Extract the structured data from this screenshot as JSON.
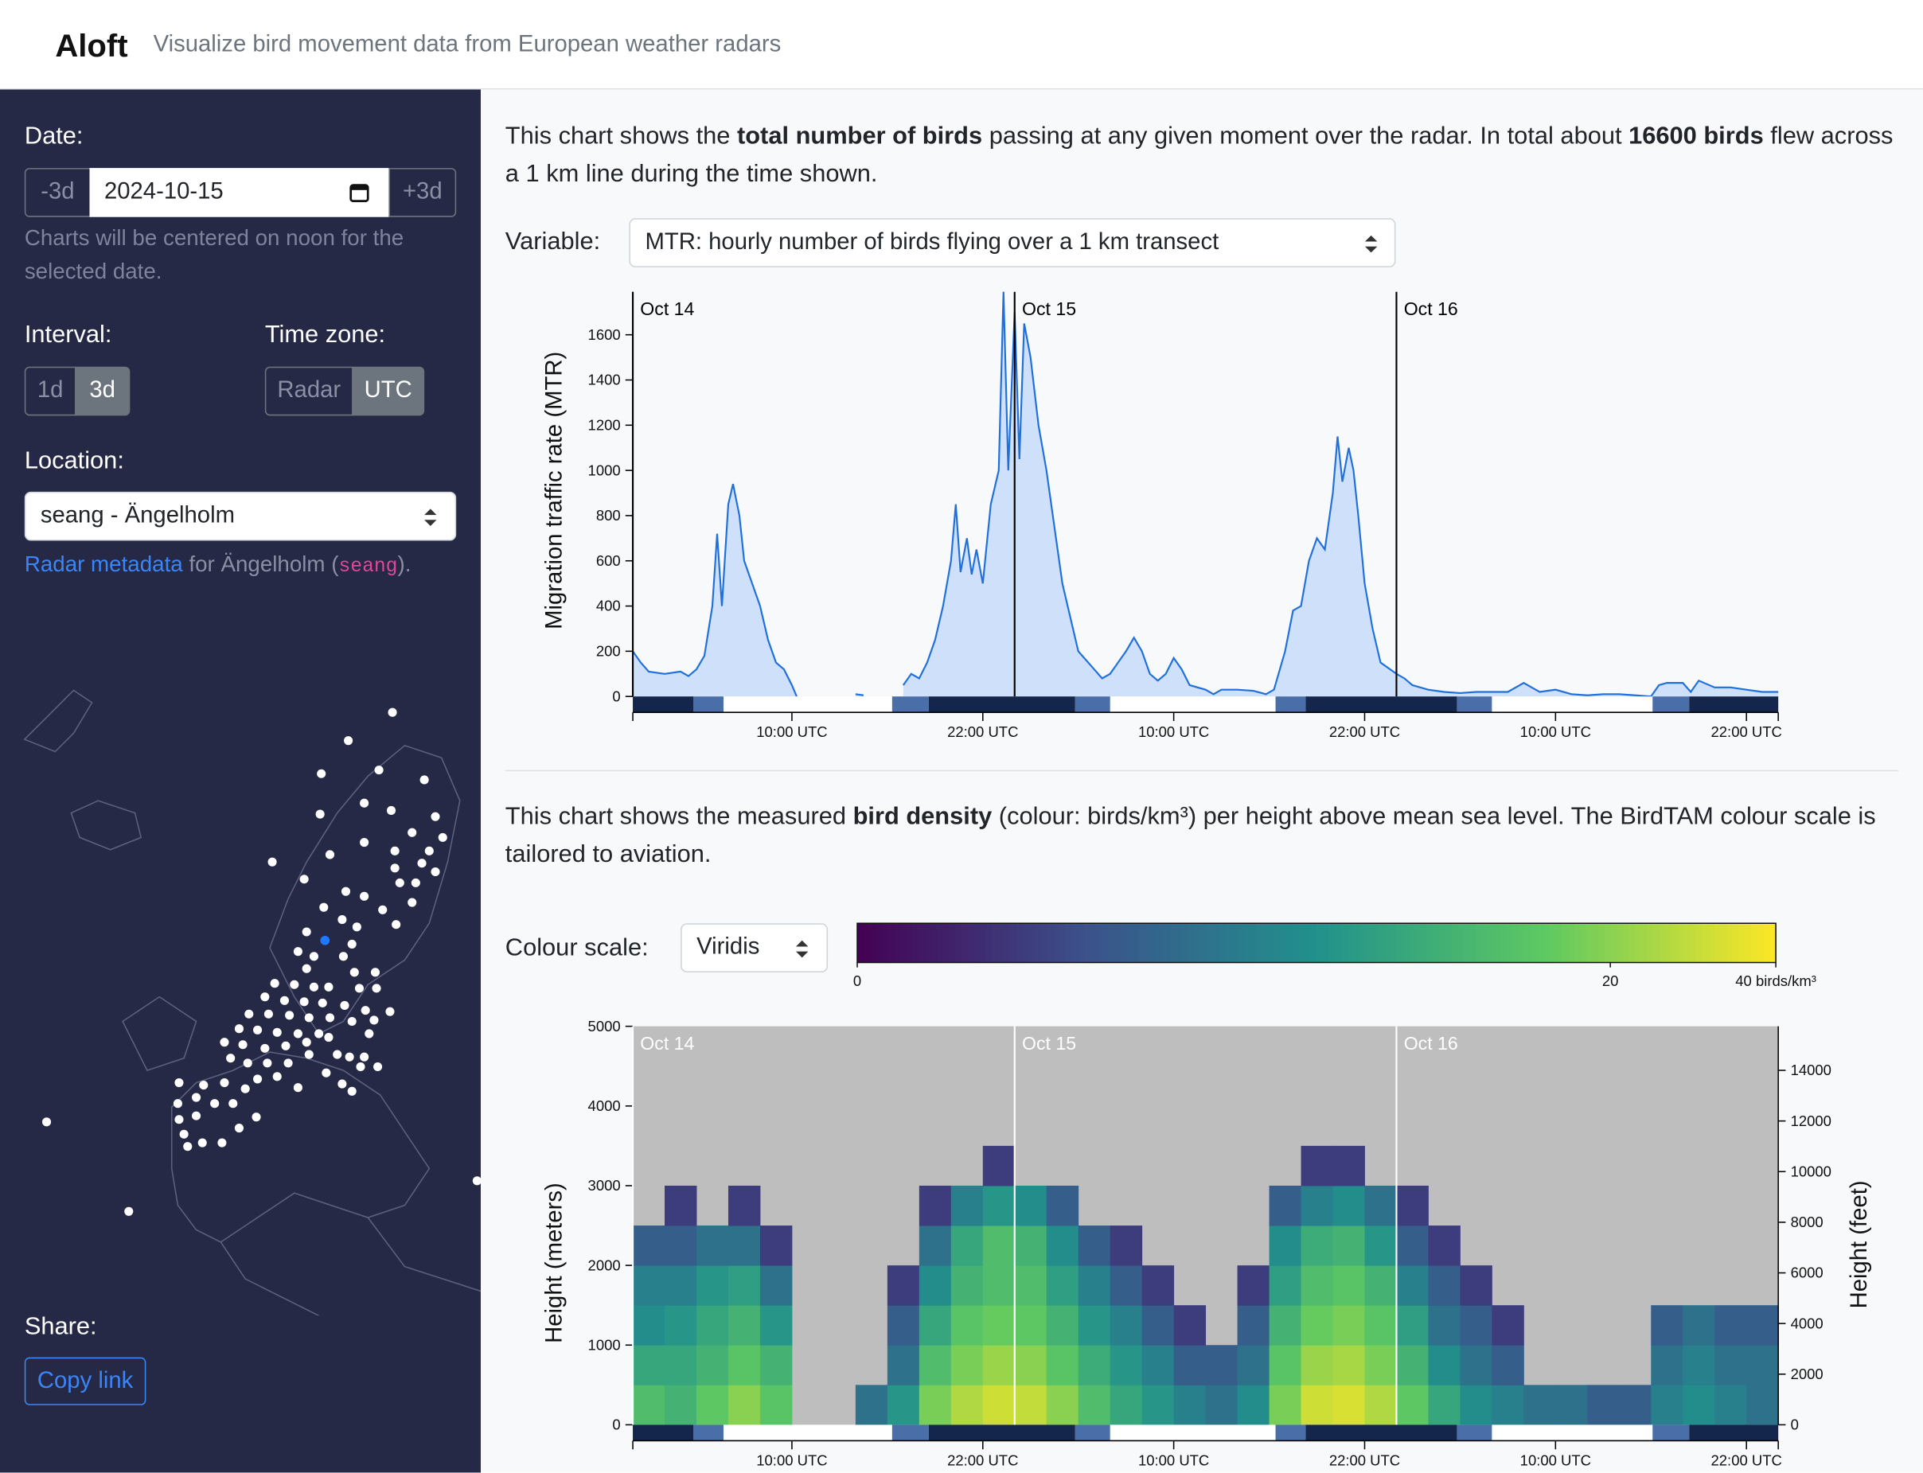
{
  "header": {
    "title": "Aloft",
    "subtitle": "Visualize bird movement data from European weather radars"
  },
  "sidebar": {
    "date_label": "Date:",
    "prev": "-3d",
    "date": "2024-10-15",
    "next": "+3d",
    "date_note": "Charts will be centered on noon for the selected date.",
    "interval_label": "Interval:",
    "interval_options": [
      "1d",
      "3d"
    ],
    "timezone_label": "Time zone:",
    "timezone_options": [
      "Radar",
      "UTC"
    ],
    "location_label": "Location:",
    "location": "seang - Ängelholm",
    "metadata": {
      "link": "Radar metadata",
      "before": " for Ängelholm (",
      "code": "seang",
      "after": ")."
    },
    "share_label": "Share:",
    "copy": "Copy link"
  },
  "main": {
    "intro1": [
      "This chart shows the ",
      "total number of birds",
      " passing at any given moment over the radar. In total about ",
      "16600 birds",
      " flew across a 1 km line during the time shown."
    ],
    "variable_label": "Variable:",
    "variable": "MTR: hourly number of birds flying over a 1 km transect",
    "intro2": [
      "This chart shows the measured ",
      "bird density",
      " (colour: birds/km³) per height above mean sea level. The BirdTAM colour scale is tailored to aviation."
    ],
    "colour_label": "Colour scale:",
    "colour": "Viridis"
  },
  "chart_data": [
    {
      "type": "area",
      "y_label": "Migration traffic rate (MTR)",
      "color": "#1f6fdc",
      "fill": "#cfe0fb",
      "x": [
        0,
        0.5,
        1,
        2,
        3,
        3.5,
        4,
        4.5,
        5,
        5.3,
        5.6,
        6,
        6.3,
        6.7,
        7,
        7.5,
        8,
        8.5,
        9,
        9.5,
        10,
        10.3,
        12,
        14,
        14.5,
        16,
        17,
        17.5,
        18,
        18.5,
        19,
        19.5,
        20,
        20.3,
        20.6,
        21,
        21.3,
        21.6,
        22,
        22.5,
        23,
        23.3,
        23.6,
        24,
        24.3,
        24.6,
        25,
        25.5,
        26,
        26.5,
        27,
        27.5,
        28,
        29,
        29.5,
        30,
        30.5,
        31,
        31.5,
        32,
        32.5,
        33,
        33.5,
        34,
        34.5,
        35,
        36,
        36.5,
        37,
        38,
        39,
        39.8,
        40.3,
        41,
        41.5,
        42,
        42.5,
        43,
        43.5,
        44,
        44.3,
        44.6,
        45,
        45.3,
        45.6,
        46,
        46.5,
        47,
        48,
        48.5,
        49,
        50,
        51,
        52,
        53,
        54,
        55,
        56,
        56.5,
        57,
        58,
        59,
        60,
        61,
        62,
        63,
        64,
        64.5,
        65,
        66,
        66.5,
        67,
        68,
        69,
        70,
        71,
        72
      ],
      "values": [
        200,
        150,
        110,
        100,
        110,
        90,
        120,
        180,
        400,
        720,
        400,
        850,
        940,
        800,
        600,
        500,
        400,
        250,
        150,
        120,
        50,
        0,
        null,
        10,
        5,
        null,
        50,
        100,
        80,
        150,
        250,
        400,
        600,
        850,
        550,
        700,
        540,
        650,
        500,
        850,
        1000,
        1790,
        1000,
        1700,
        1050,
        1650,
        1500,
        1200,
        1000,
        750,
        500,
        350,
        200,
        120,
        80,
        100,
        150,
        200,
        260,
        200,
        100,
        70,
        100,
        170,
        120,
        50,
        30,
        10,
        30,
        30,
        25,
        10,
        30,
        200,
        380,
        400,
        600,
        700,
        650,
        900,
        1150,
        950,
        1100,
        1000,
        800,
        500,
        300,
        150,
        100,
        80,
        50,
        30,
        20,
        15,
        20,
        20,
        20,
        60,
        40,
        20,
        30,
        10,
        5,
        10,
        10,
        5,
        0,
        50,
        60,
        60,
        20,
        70,
        40,
        40,
        30,
        20,
        20
      ],
      "xlim": [
        0,
        72
      ],
      "xticks": [
        {
          "value": 10,
          "label": "10:00 UTC"
        },
        {
          "value": 22,
          "label": "22:00 UTC"
        },
        {
          "value": 34,
          "label": "10:00 UTC"
        },
        {
          "value": 46,
          "label": "22:00 UTC"
        },
        {
          "value": 58,
          "label": "10:00 UTC"
        },
        {
          "value": 70,
          "label": "22:00 UTC"
        }
      ],
      "ylim": [
        0,
        1790
      ],
      "yticks": [
        0,
        200,
        400,
        600,
        800,
        1000,
        1200,
        1400,
        1600
      ],
      "day_lines": [
        {
          "value": 0,
          "label": "Oct 14"
        },
        {
          "value": 24,
          "label": "Oct 15"
        },
        {
          "value": 48,
          "label": "Oct 16"
        }
      ],
      "night": [
        [
          0,
          3.8
        ],
        [
          18.6,
          27.8
        ],
        [
          42.3,
          51.8
        ],
        [
          66.4,
          72
        ]
      ],
      "twilight": [
        [
          3.8,
          5.7
        ],
        [
          16.3,
          18.6
        ],
        [
          27.8,
          30
        ],
        [
          40.4,
          42.3
        ],
        [
          51.8,
          54
        ],
        [
          64.1,
          66.4
        ]
      ]
    },
    {
      "type": "heatmap",
      "y_label": "Height (meters)",
      "y2_label": "Height (feet)",
      "colormap": "viridis",
      "color_scale": "log1p",
      "missing_color": "#bebebe",
      "x_bins": [
        0,
        2,
        4,
        6,
        8,
        10,
        12,
        14,
        16,
        18,
        20,
        22,
        24,
        26,
        28,
        30,
        32,
        34,
        36,
        38,
        40,
        42,
        44,
        46,
        48,
        50,
        52,
        54,
        56,
        58,
        60,
        62,
        64,
        66,
        68,
        70,
        72
      ],
      "y_bins": [
        0,
        500,
        1000,
        1500,
        2000,
        2500,
        3000,
        3500,
        4000,
        4500,
        5000
      ],
      "z": [
        [
          12,
          10,
          15,
          20,
          14,
          null,
          null,
          3,
          6,
          18,
          25,
          30,
          28,
          20,
          12,
          8,
          6,
          4,
          3,
          5,
          18,
          30,
          32,
          25,
          15,
          8,
          5,
          4,
          3,
          3,
          2,
          2,
          4,
          5,
          4,
          3
        ],
        [
          8,
          8,
          10,
          14,
          10,
          null,
          null,
          null,
          3,
          12,
          18,
          22,
          20,
          14,
          9,
          6,
          4,
          2,
          2,
          3,
          14,
          22,
          24,
          18,
          10,
          5,
          3,
          2,
          null,
          null,
          null,
          null,
          3,
          4,
          3,
          3
        ],
        [
          5,
          6,
          8,
          10,
          6,
          null,
          null,
          null,
          2,
          8,
          14,
          16,
          15,
          10,
          6,
          4,
          2,
          1,
          null,
          2,
          10,
          16,
          18,
          14,
          7,
          3,
          2,
          1,
          null,
          null,
          null,
          null,
          2,
          3,
          2,
          2
        ],
        [
          4,
          4,
          6,
          7,
          3,
          null,
          null,
          null,
          1,
          5,
          10,
          12,
          12,
          7,
          4,
          2,
          1,
          null,
          null,
          1,
          7,
          12,
          14,
          10,
          4,
          2,
          1,
          null,
          null,
          null,
          null,
          null,
          null,
          null,
          null,
          null
        ],
        [
          2,
          2,
          3,
          3,
          1,
          null,
          null,
          null,
          null,
          3,
          8,
          12,
          10,
          5,
          2,
          1,
          null,
          null,
          null,
          null,
          5,
          9,
          10,
          6,
          2,
          1,
          null,
          null,
          null,
          null,
          null,
          null,
          null,
          null,
          null,
          null
        ],
        [
          null,
          1,
          null,
          1,
          null,
          null,
          null,
          null,
          null,
          1,
          4,
          6,
          5,
          2,
          null,
          null,
          null,
          null,
          null,
          null,
          2,
          4,
          5,
          3,
          1,
          null,
          null,
          null,
          null,
          null,
          null,
          null,
          null,
          null,
          null,
          null
        ],
        [
          null,
          null,
          null,
          null,
          null,
          null,
          null,
          null,
          null,
          null,
          null,
          1,
          null,
          null,
          null,
          null,
          null,
          null,
          null,
          null,
          null,
          1,
          1,
          null,
          null,
          null,
          null,
          null,
          null,
          null,
          null,
          null,
          null,
          null,
          null,
          null
        ],
        [
          null,
          null,
          null,
          null,
          null,
          null,
          null,
          null,
          null,
          null,
          null,
          null,
          null,
          null,
          null,
          null,
          null,
          null,
          null,
          null,
          null,
          null,
          null,
          null,
          null,
          null,
          null,
          null,
          null,
          null,
          null,
          null,
          null,
          null,
          null,
          null
        ],
        [
          null,
          null,
          null,
          null,
          null,
          null,
          null,
          null,
          null,
          null,
          null,
          null,
          null,
          null,
          null,
          null,
          null,
          null,
          null,
          null,
          null,
          null,
          null,
          null,
          null,
          null,
          null,
          null,
          null,
          null,
          null,
          null,
          null,
          null,
          null,
          null
        ],
        [
          null,
          null,
          null,
          null,
          null,
          null,
          null,
          null,
          null,
          null,
          null,
          null,
          null,
          null,
          null,
          null,
          null,
          null,
          null,
          null,
          null,
          null,
          null,
          null,
          null,
          null,
          null,
          null,
          null,
          null,
          null,
          null,
          null,
          null,
          null,
          null
        ]
      ],
      "xlim": [
        0,
        72
      ],
      "xticks": [
        {
          "value": 10,
          "label": "10:00 UTC"
        },
        {
          "value": 22,
          "label": "22:00 UTC"
        },
        {
          "value": 34,
          "label": "10:00 UTC"
        },
        {
          "value": 46,
          "label": "22:00 UTC"
        },
        {
          "value": 58,
          "label": "10:00 UTC"
        },
        {
          "value": 70,
          "label": "22:00 UTC"
        }
      ],
      "ylim": [
        0,
        5000
      ],
      "yticks": [
        0,
        1000,
        2000,
        3000,
        4000,
        5000
      ],
      "y2lim": [
        0,
        15740
      ],
      "y2ticks": [
        0,
        2000,
        4000,
        6000,
        8000,
        10000,
        12000,
        14000
      ],
      "clim": [
        0,
        40
      ],
      "cticks": [
        0,
        20,
        {
          "value": 40,
          "label": "40 birds/km³"
        }
      ],
      "day_lines": [
        {
          "value": 0,
          "label": "Oct 14"
        },
        {
          "value": 24,
          "label": "Oct 15"
        },
        {
          "value": 48,
          "label": "Oct 16"
        }
      ],
      "night": [
        [
          0,
          3.8
        ],
        [
          18.6,
          27.8
        ],
        [
          42.3,
          51.8
        ],
        [
          66.4,
          72
        ]
      ],
      "twilight": [
        [
          3.8,
          5.7
        ],
        [
          16.3,
          18.6
        ],
        [
          27.8,
          30
        ],
        [
          40.4,
          42.3
        ],
        [
          51.8,
          54
        ],
        [
          64.1,
          66.4
        ]
      ]
    }
  ]
}
